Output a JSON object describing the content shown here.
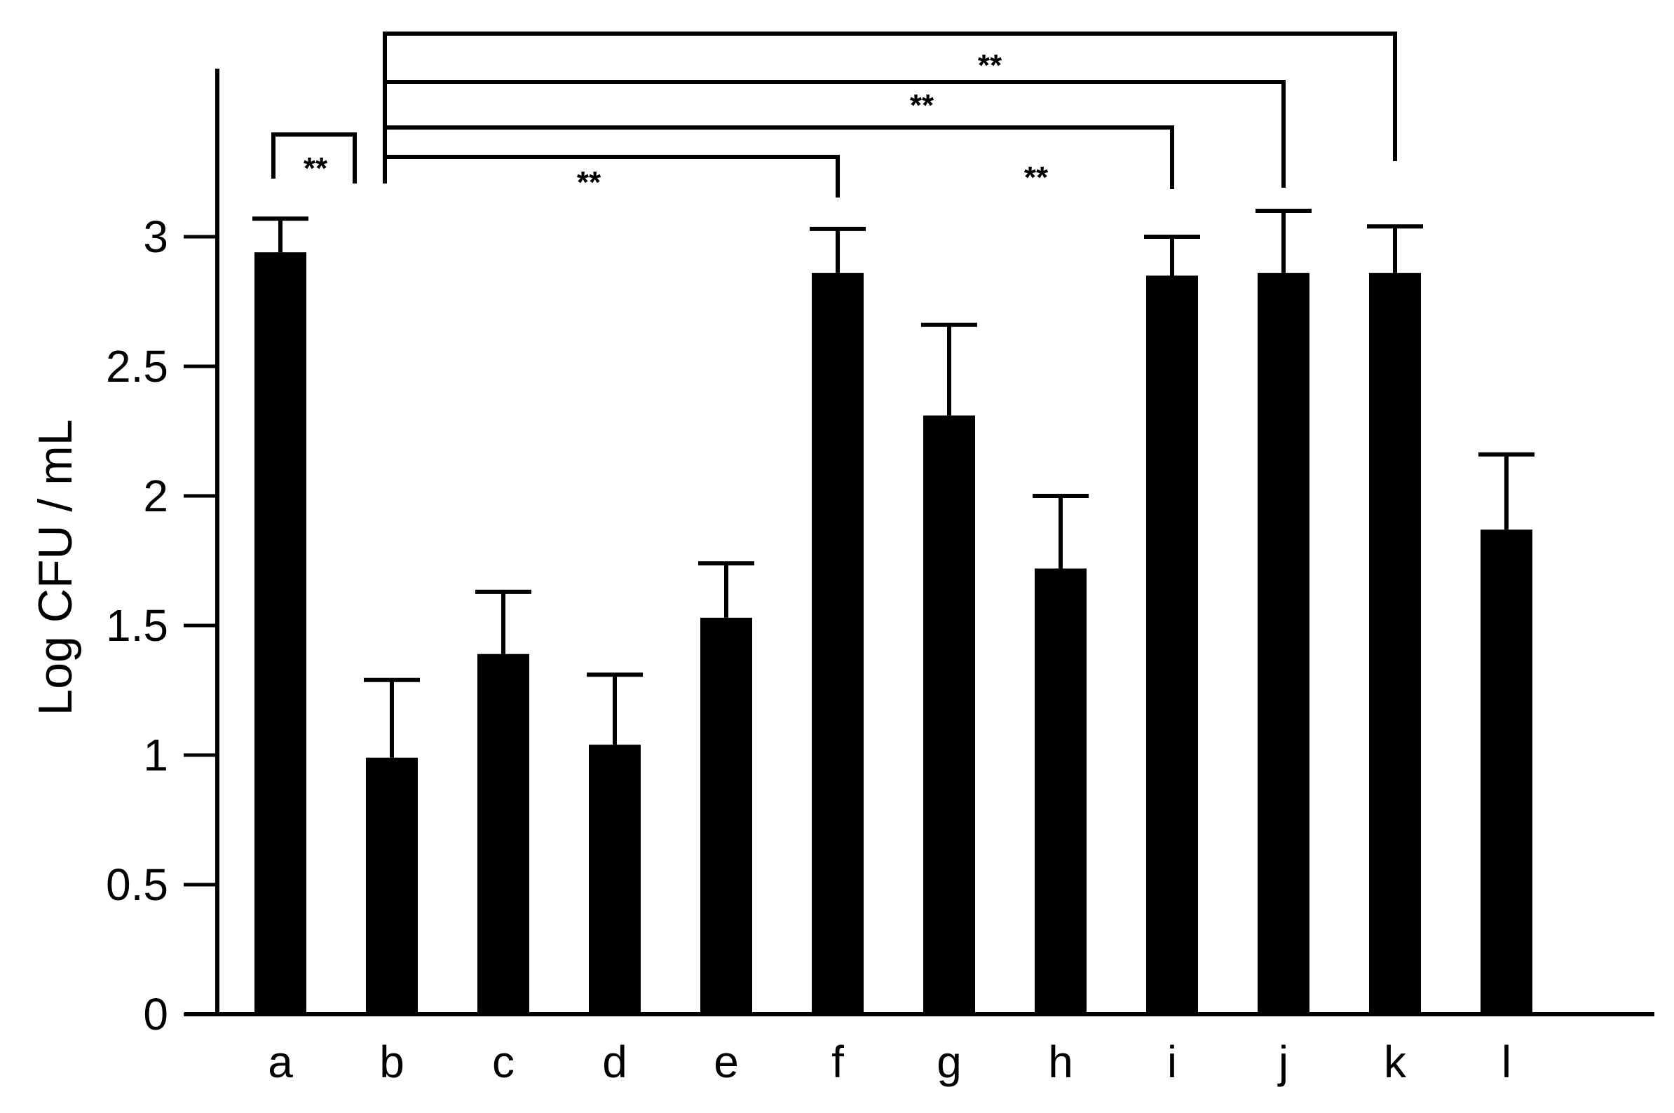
{
  "chart_data": {
    "type": "bar",
    "title": "",
    "xlabel": "",
    "ylabel": "Log CFU / mL",
    "ylim": [
      0,
      3.2
    ],
    "yticks": [
      0,
      0.5,
      1,
      1.5,
      2,
      2.5,
      3
    ],
    "ytick_labels": [
      "0",
      "0.5",
      "1",
      "1.5",
      "2",
      "2.5",
      "3"
    ],
    "categories": [
      "a",
      "b",
      "c",
      "d",
      "e",
      "f",
      "g",
      "h",
      "i",
      "j",
      "k",
      "l"
    ],
    "values": [
      2.94,
      0.99,
      1.39,
      1.04,
      1.53,
      2.86,
      2.31,
      1.72,
      2.85,
      2.86,
      2.86,
      1.87
    ],
    "errors": [
      0.13,
      0.3,
      0.24,
      0.27,
      0.21,
      0.17,
      0.35,
      0.28,
      0.15,
      0.24,
      0.18,
      0.29
    ],
    "bar_color": "#000000",
    "grid": false,
    "significance": [
      {
        "from": "a",
        "to": "b",
        "label": "**"
      },
      {
        "from": "b",
        "to": "f",
        "label": "**"
      },
      {
        "from": "b",
        "to": "i",
        "label": "**"
      },
      {
        "from": "b",
        "to": "j",
        "label": "**"
      },
      {
        "from": "b",
        "to": "k",
        "label": "**"
      }
    ]
  }
}
